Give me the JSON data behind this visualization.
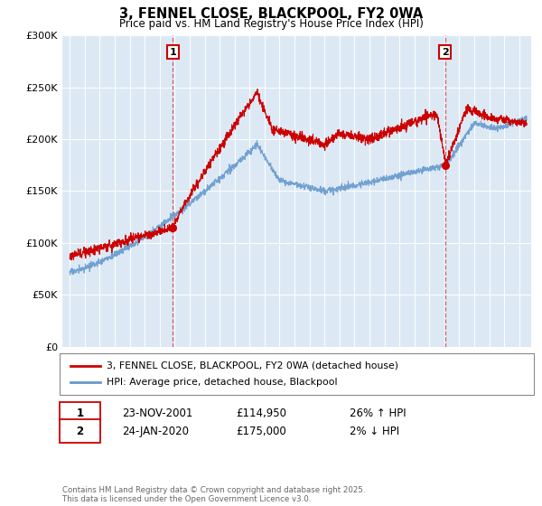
{
  "title": "3, FENNEL CLOSE, BLACKPOOL, FY2 0WA",
  "subtitle": "Price paid vs. HM Land Registry's House Price Index (HPI)",
  "legend_line1": "3, FENNEL CLOSE, BLACKPOOL, FY2 0WA (detached house)",
  "legend_line2": "HPI: Average price, detached house, Blackpool",
  "footnote": "Contains HM Land Registry data © Crown copyright and database right 2025.\nThis data is licensed under the Open Government Licence v3.0.",
  "annotation1_label": "1",
  "annotation1_date": "23-NOV-2001",
  "annotation1_price": "£114,950",
  "annotation1_hpi": "26% ↑ HPI",
  "annotation2_label": "2",
  "annotation2_date": "24-JAN-2020",
  "annotation2_price": "£175,000",
  "annotation2_hpi": "2% ↓ HPI",
  "red_color": "#cc0000",
  "blue_color": "#6699cc",
  "ylim_min": 0,
  "ylim_max": 300000,
  "ytick_values": [
    0,
    50000,
    100000,
    150000,
    200000,
    250000,
    300000
  ],
  "ytick_labels": [
    "£0",
    "£50K",
    "£100K",
    "£150K",
    "£200K",
    "£250K",
    "£300K"
  ],
  "background_color": "#ffffff",
  "plot_bg_color": "#dce9f5"
}
